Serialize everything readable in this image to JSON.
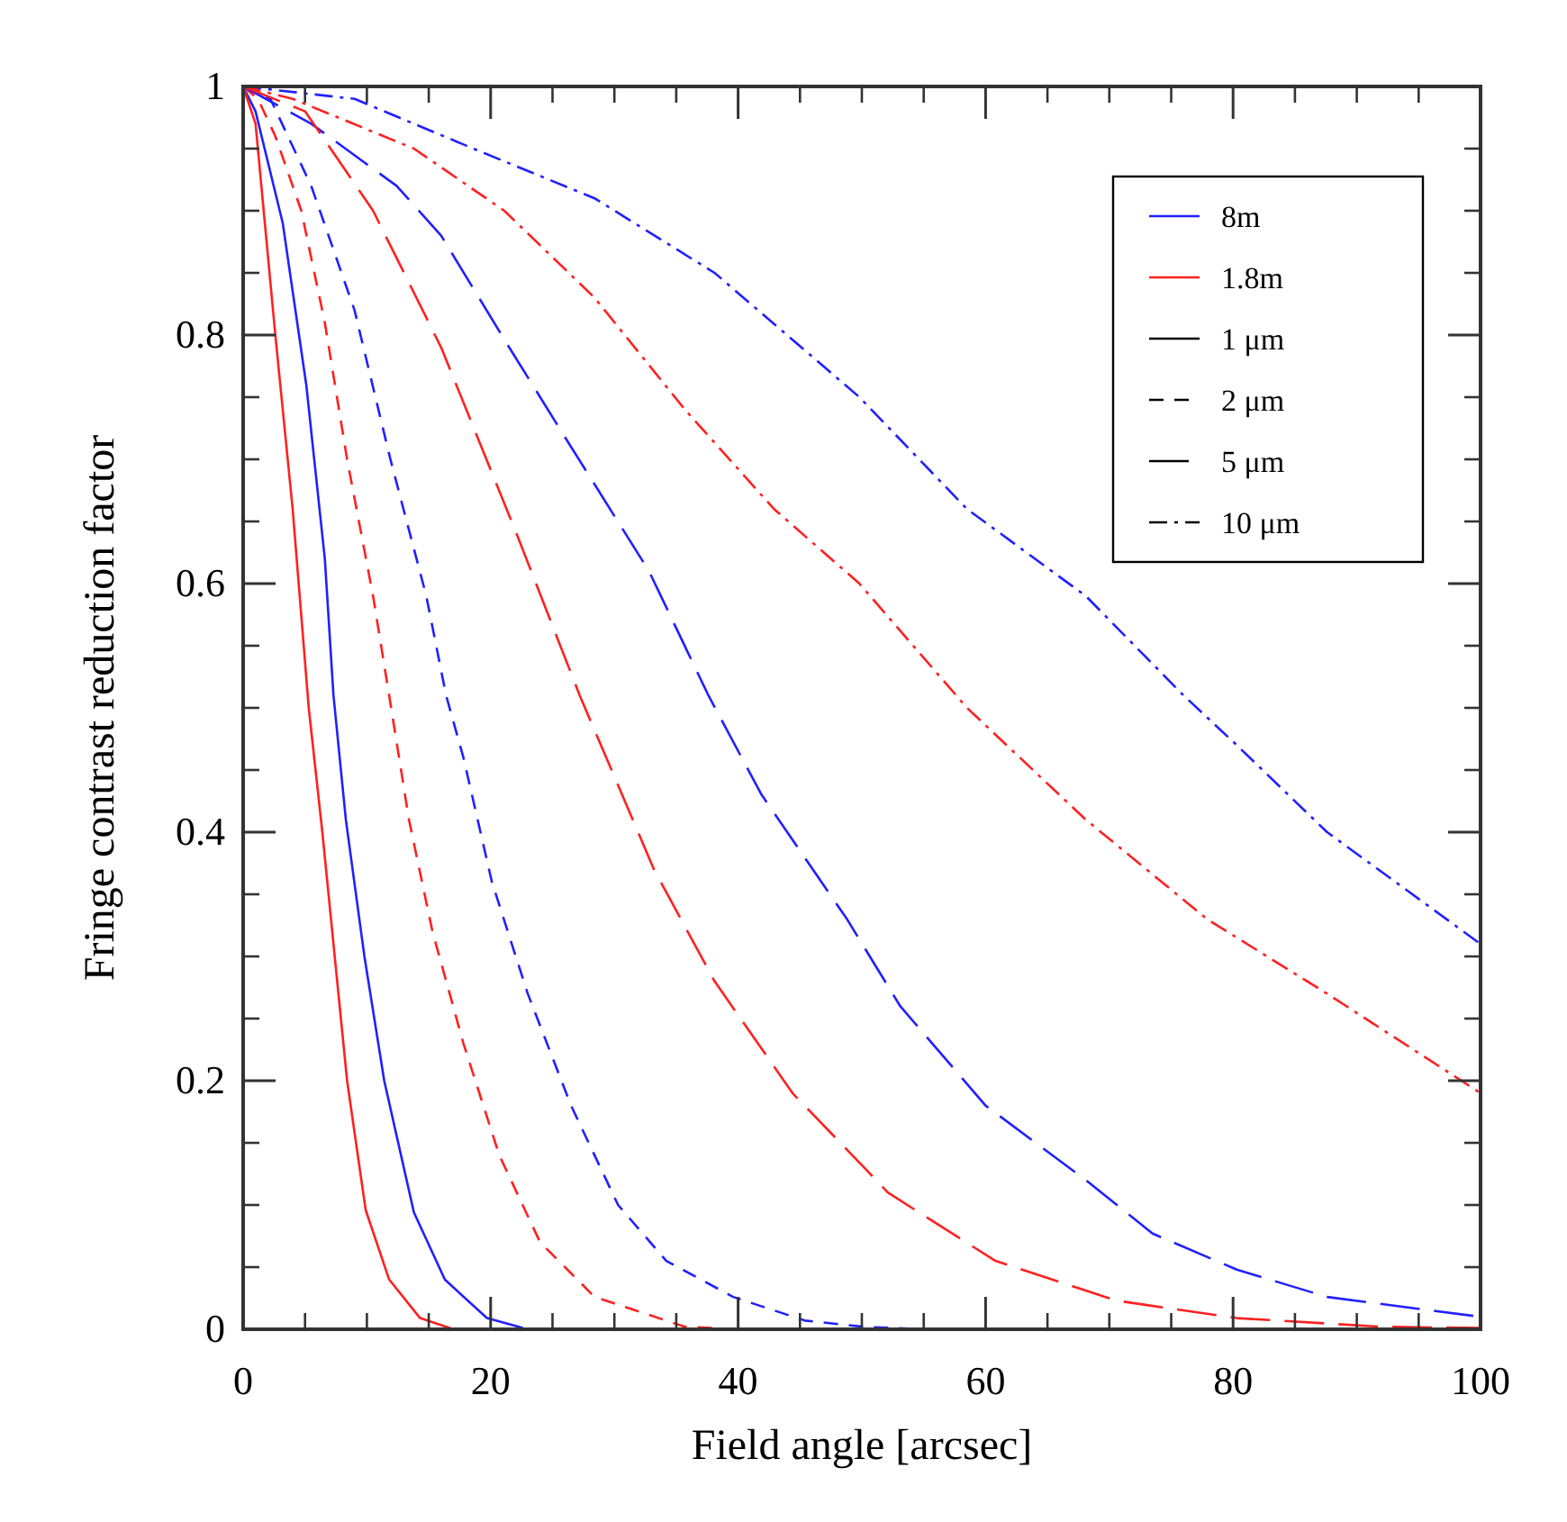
{
  "chart_data": {
    "type": "line",
    "xlabel": "Field angle [arcsec]",
    "ylabel": "Fringe contrast reduction factor",
    "xlim": [
      0,
      100
    ],
    "ylim": [
      0,
      1
    ],
    "xticks": [
      0,
      20,
      40,
      60,
      80,
      100
    ],
    "yticks": [
      0,
      0.2,
      0.4,
      0.6,
      0.8,
      1
    ],
    "grid": false,
    "annotations": [
      "8m",
      "1.8m",
      "1 μm",
      "2 μm",
      "5 μm",
      "10 μm"
    ],
    "series": [
      {
        "color": "#2020ff",
        "line_style": "solid",
        "x": [
          0,
          1,
          3.2,
          5.1,
          6.6,
          7.3,
          8.3,
          9.8,
          11.4,
          13.8,
          16.3,
          19.7,
          22.6
        ],
        "values": [
          1,
          0.98,
          0.89,
          0.76,
          0.62,
          0.51,
          0.41,
          0.3,
          0.2,
          0.094,
          0.04,
          0.009,
          0.001
        ]
      },
      {
        "color": "#ff2020",
        "line_style": "solid",
        "x": [
          0,
          1,
          2.6,
          4,
          5.3,
          6.4,
          8.4,
          9.9,
          11.8,
          14.3,
          17
        ],
        "values": [
          1,
          0.97,
          0.8,
          0.66,
          0.5,
          0.4,
          0.2,
          0.096,
          0.04,
          0.009,
          0
        ]
      },
      {
        "color": "#2020ff",
        "line_style": "dashed",
        "x": [
          0,
          2.2,
          5.5,
          9,
          11.9,
          14.8,
          16.4,
          17.8,
          20.1,
          23,
          26.5,
          30.3,
          34.2,
          39.6,
          45.4,
          50.2,
          55
        ],
        "values": [
          1,
          0.99,
          0.92,
          0.82,
          0.7,
          0.59,
          0.51,
          0.46,
          0.36,
          0.27,
          0.18,
          0.1,
          0.055,
          0.026,
          0.007,
          0.002,
          0
        ]
      },
      {
        "color": "#ff2020",
        "line_style": "dashed",
        "x": [
          0,
          1.2,
          2.6,
          4.7,
          6.6,
          8.4,
          10.5,
          11.8,
          13.4,
          15.3,
          17.8,
          20.7,
          24,
          28.4,
          35.7,
          40
        ],
        "values": [
          1,
          0.99,
          0.96,
          0.9,
          0.81,
          0.7,
          0.59,
          0.51,
          0.41,
          0.32,
          0.23,
          0.14,
          0.07,
          0.026,
          0.002,
          0
        ]
      },
      {
        "color": "#2020ff",
        "line_style": "longdash",
        "x": [
          0,
          5.5,
          12.4,
          16,
          21.5,
          26.5,
          32.8,
          37.6,
          41.9,
          48.8,
          53.1,
          60,
          68.1,
          73.5,
          80.3,
          87.6,
          100
        ],
        "values": [
          1,
          0.97,
          0.92,
          0.88,
          0.79,
          0.71,
          0.61,
          0.51,
          0.43,
          0.33,
          0.26,
          0.18,
          0.12,
          0.077,
          0.048,
          0.026,
          0.01
        ]
      },
      {
        "color": "#ff2020",
        "line_style": "longdash",
        "x": [
          0,
          5,
          10.5,
          16,
          22.1,
          27.2,
          33.2,
          38.1,
          44.4,
          50.2,
          52.1,
          60.8,
          70.6,
          80.3,
          92,
          100
        ],
        "values": [
          1,
          0.98,
          0.9,
          0.79,
          0.64,
          0.51,
          0.37,
          0.28,
          0.19,
          0.13,
          0.11,
          0.055,
          0.023,
          0.009,
          0.002,
          0.001
        ]
      },
      {
        "color": "#2020ff",
        "line_style": "dashdot",
        "x": [
          0,
          9,
          18.6,
          28.4,
          38.1,
          49.8,
          58.5,
          68.1,
          76,
          80.3,
          87.6,
          100
        ],
        "values": [
          1,
          0.99,
          0.95,
          0.91,
          0.85,
          0.75,
          0.66,
          0.59,
          0.51,
          0.47,
          0.4,
          0.31
        ]
      },
      {
        "color": "#ff2020",
        "line_style": "dashdot",
        "x": [
          0,
          4,
          13.8,
          21.1,
          28.4,
          35.7,
          42.9,
          49.8,
          58.5,
          68.1,
          77.9,
          87.6,
          100
        ],
        "values": [
          1,
          0.99,
          0.95,
          0.9,
          0.83,
          0.74,
          0.66,
          0.6,
          0.5,
          0.41,
          0.33,
          0.27,
          0.19
        ]
      }
    ]
  }
}
